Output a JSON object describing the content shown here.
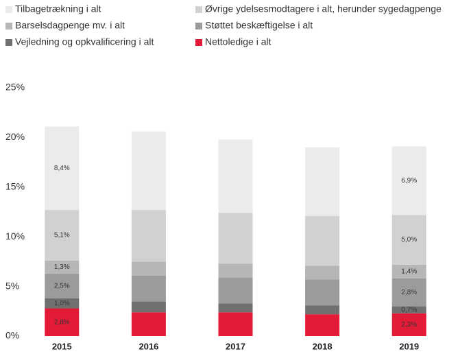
{
  "chart_data": {
    "type": "stacked_bar",
    "categories": [
      "2015",
      "2016",
      "2017",
      "2018",
      "2019"
    ],
    "series": [
      {
        "name": "Tilbagetrækning i alt",
        "color": "#ebebeb",
        "values": [
          8.4,
          7.9,
          7.4,
          6.9,
          6.9
        ],
        "value_labels": [
          "8,4%",
          null,
          null,
          null,
          "6,9%"
        ]
      },
      {
        "name": "Øvrige ydelsesmodtagere i alt, herunder sygedagpenge",
        "color": "#d1d1d1",
        "values": [
          5.1,
          5.2,
          5.1,
          5.0,
          5.0
        ],
        "value_labels": [
          "5,1%",
          null,
          null,
          null,
          "5,0%"
        ]
      },
      {
        "name": "Barselsdagpenge mv. i alt",
        "color": "#b6b6b6",
        "values": [
          1.3,
          1.4,
          1.4,
          1.4,
          1.4
        ],
        "value_labels": [
          "1,3%",
          null,
          null,
          null,
          "1,4%"
        ]
      },
      {
        "name": "Støttet beskæftigelse i alt",
        "color": "#9b9b9b",
        "values": [
          2.5,
          2.6,
          2.6,
          2.6,
          2.8
        ],
        "value_labels": [
          "2,5%",
          null,
          null,
          null,
          "2,8%"
        ]
      },
      {
        "name": "Vejledning og opkvalificering i alt",
        "color": "#707070",
        "values": [
          1.0,
          1.1,
          0.9,
          0.9,
          0.7
        ],
        "value_labels": [
          "1,0%",
          null,
          null,
          null,
          "0,7%"
        ]
      },
      {
        "name": "Nettoledige i alt",
        "color": "#e31b37",
        "values": [
          2.8,
          2.4,
          2.4,
          2.2,
          2.3
        ],
        "value_labels": [
          "2,8%",
          null,
          null,
          null,
          "2,3%"
        ]
      }
    ],
    "ylim": [
      0,
      25
    ],
    "yticks": [
      {
        "value": 0,
        "label": "0%"
      },
      {
        "value": 5,
        "label": "5%"
      },
      {
        "value": 10,
        "label": "10%"
      },
      {
        "value": 15,
        "label": "15%"
      },
      {
        "value": 20,
        "label": "20%"
      },
      {
        "value": 25,
        "label": "25%"
      }
    ],
    "grid": false
  }
}
